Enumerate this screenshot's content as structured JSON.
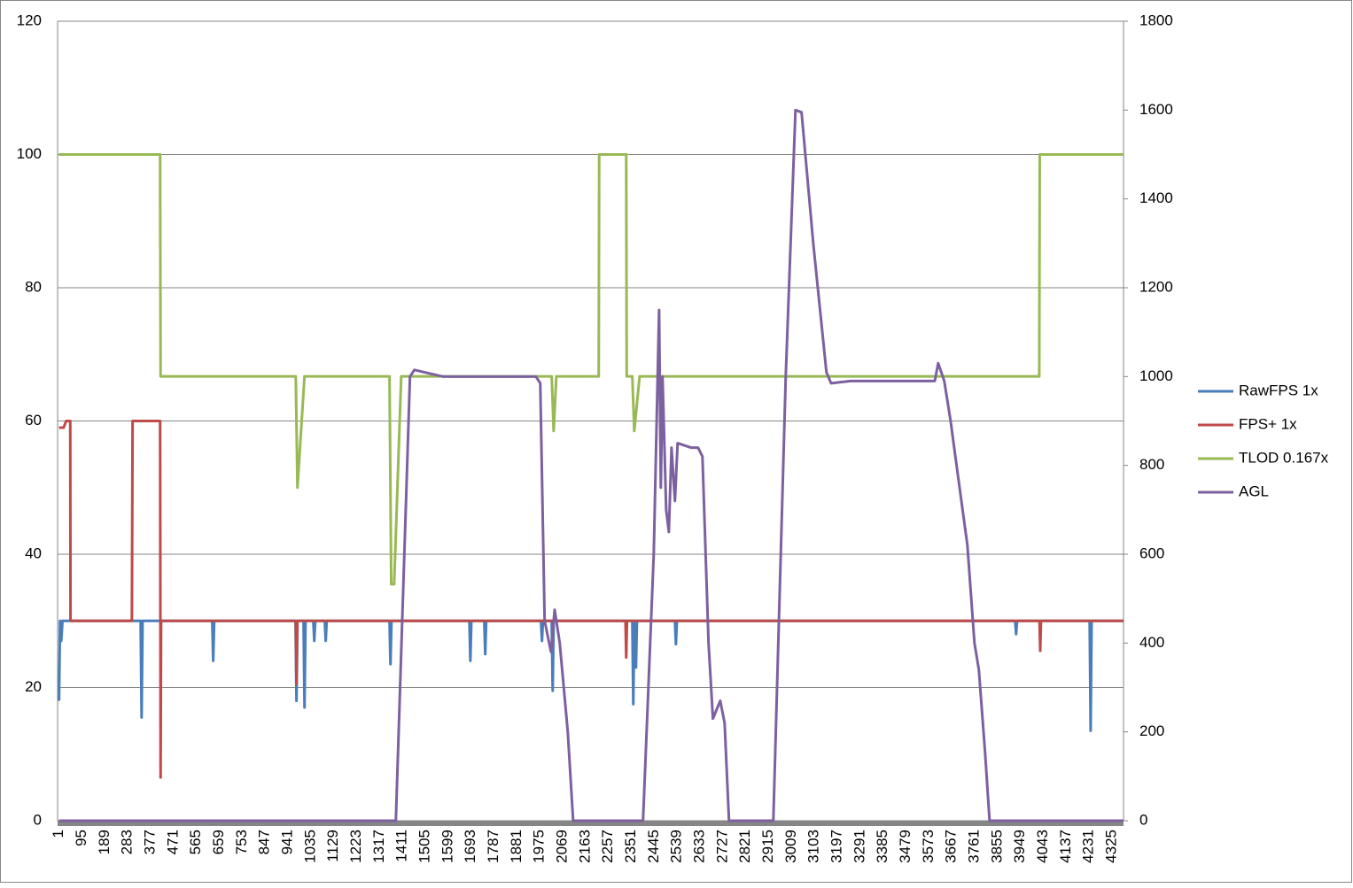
{
  "chart_data": {
    "type": "line",
    "xlim": [
      -5,
      4372
    ],
    "xticks": [
      1,
      95,
      189,
      283,
      377,
      471,
      565,
      659,
      753,
      847,
      941,
      1035,
      1129,
      1223,
      1317,
      1411,
      1505,
      1599,
      1693,
      1787,
      1881,
      1975,
      2069,
      2163,
      2257,
      2351,
      2445,
      2539,
      2633,
      2727,
      2821,
      2915,
      3009,
      3103,
      3197,
      3291,
      3385,
      3479,
      3573,
      3667,
      3761,
      3855,
      3949,
      4043,
      4137,
      4231,
      4325
    ],
    "ylim": [
      0,
      120
    ],
    "yticks": [
      0,
      20,
      40,
      60,
      80,
      100,
      120
    ],
    "y2lim": [
      0,
      1800
    ],
    "y2ticks": [
      0,
      200,
      400,
      600,
      800,
      1000,
      1200,
      1400,
      1600,
      1800
    ],
    "grid": true,
    "legend": "right",
    "series": [
      {
        "name": "RawFPS 1x",
        "color": "#4a7ebb",
        "x": [
          1,
          5,
          10,
          15,
          20,
          336,
          340,
          344,
          630,
          634,
          638,
          972,
          976,
          980,
          1005,
          1009,
          1013,
          1045,
          1049,
          1053,
          1092,
          1096,
          1100,
          1358,
          1362,
          1366,
          1686,
          1690,
          1694,
          1747,
          1751,
          1755,
          1980,
          1984,
          1988,
          2024,
          2028,
          2032,
          2355,
          2359,
          2363,
          2366,
          2370,
          2374,
          2530,
          2534,
          2538,
          3927,
          3931,
          3935,
          4233,
          4237,
          4241,
          4372
        ],
        "values": [
          18,
          30,
          27,
          30,
          30,
          30,
          15.5,
          30,
          30,
          24,
          30,
          30,
          18,
          30,
          30,
          17,
          30,
          30,
          27,
          30,
          30,
          27,
          30,
          30,
          23.5,
          30,
          30,
          24,
          30,
          30,
          25,
          30,
          30,
          27,
          30,
          30,
          19.5,
          30,
          30,
          17.5,
          30,
          30,
          23,
          30,
          30,
          26.5,
          30,
          30,
          28,
          30,
          30,
          13.5,
          30,
          30
        ]
      },
      {
        "name": "FPS+ 1x",
        "color": "#be4b48",
        "x": [
          1,
          20,
          30,
          45,
          47,
          48,
          300,
          303,
          416,
          418,
          420,
          973,
          976,
          979,
          2327,
          2330,
          2333,
          4027,
          4030,
          4033,
          4372
        ],
        "values": [
          59,
          59,
          60,
          60,
          60,
          30,
          30,
          60,
          60,
          6.5,
          30,
          30,
          20.5,
          30,
          30,
          24.5,
          30,
          30,
          25.5,
          30,
          30
        ]
      },
      {
        "name": "TLOD 0.167x",
        "color": "#98b954",
        "x": [
          1,
          416,
          418,
          973,
          980,
          1009,
          1358,
          1365,
          1377,
          1406,
          2024,
          2032,
          2043,
          2217,
          2219,
          2330,
          2332,
          2355,
          2363,
          2385,
          4026,
          4028,
          4372
        ],
        "values": [
          100,
          100,
          66.7,
          66.7,
          50,
          66.7,
          66.7,
          35.5,
          35.5,
          66.7,
          66.7,
          58.5,
          66.7,
          66.7,
          100,
          100,
          66.7,
          66.7,
          58.5,
          66.7,
          66.7,
          100,
          100
        ]
      },
      {
        "name": "AGL",
        "color": "#7d60a0",
        "axis": "y2",
        "x": [
          1,
          1384,
          1442,
          1460,
          1577,
          1959,
          1977,
          1995,
          2021,
          2036,
          2057,
          2090,
          2112,
          2399,
          2443,
          2465,
          2472,
          2479,
          2494,
          2505,
          2516,
          2530,
          2541,
          2596,
          2625,
          2643,
          2668,
          2686,
          2716,
          2734,
          2752,
          2934,
          2985,
          3025,
          3050,
          3098,
          3152,
          3171,
          3251,
          3597,
          3611,
          3636,
          3662,
          3684,
          3731,
          3760,
          3778,
          3804,
          3822,
          4372
        ],
        "values": [
          0,
          0,
          1000,
          1015,
          1000,
          1000,
          985,
          450,
          380,
          475,
          400,
          200,
          0,
          0,
          600,
          1150,
          750,
          1000,
          700,
          650,
          840,
          720,
          850,
          840,
          840,
          820,
          400,
          230,
          270,
          220,
          0,
          0,
          1000,
          1600,
          1595,
          1300,
          1010,
          985,
          990,
          990,
          1030,
          990,
          900,
          810,
          620,
          400,
          340,
          150,
          0,
          0
        ]
      }
    ]
  }
}
